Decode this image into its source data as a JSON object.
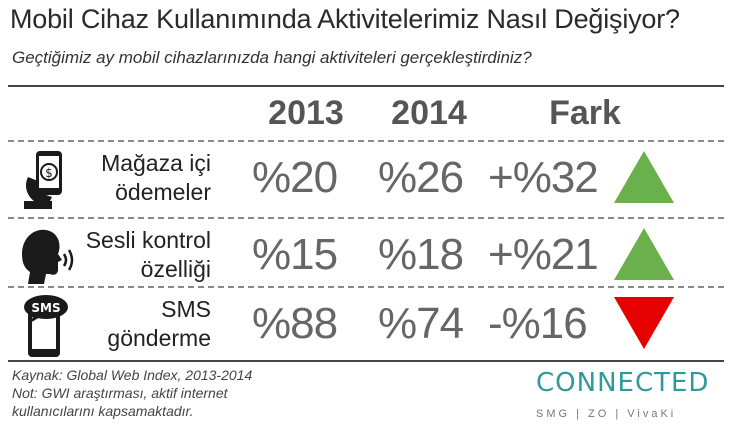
{
  "title": "Mobil Cihaz Kullanımında Aktivitelerimiz Nasıl Değişiyor?",
  "subtitle": "Geçtiğimiz ay mobil cihazlarınızda hangi aktiviteleri gerçekleştirdiniz?",
  "columns": {
    "y2013": "2013",
    "y2014": "2014",
    "fark": "Fark"
  },
  "rows": [
    {
      "label1": "Mağaza içi",
      "label2": "ödemeler",
      "v2013": "%20",
      "v2014": "%26",
      "fark": "+%32",
      "trend": "up",
      "icon": "phone-payment-icon"
    },
    {
      "label1": "Sesli kontrol",
      "label2": "özelliği",
      "v2013": "%15",
      "v2014": "%18",
      "fark": "+%21",
      "trend": "up",
      "icon": "voice-control-icon"
    },
    {
      "label1": "SMS",
      "label2": "gönderme",
      "v2013": "%88",
      "v2014": "%74",
      "fark": "-%16",
      "trend": "down",
      "icon": "sms-phone-icon"
    }
  ],
  "source": {
    "line1": "Kaynak: Global Web Index, 2013-2014",
    "line2": "Not: GWI araştırması, aktif internet",
    "line3": "kullanıcılarını kapsamaktadır."
  },
  "logo": {
    "brand": "CONNECTED",
    "sub": "SMG | ZO | VivaKi"
  },
  "colors": {
    "up": "#6ab04c",
    "down": "#e60000",
    "brand": "#2e9a9a"
  }
}
